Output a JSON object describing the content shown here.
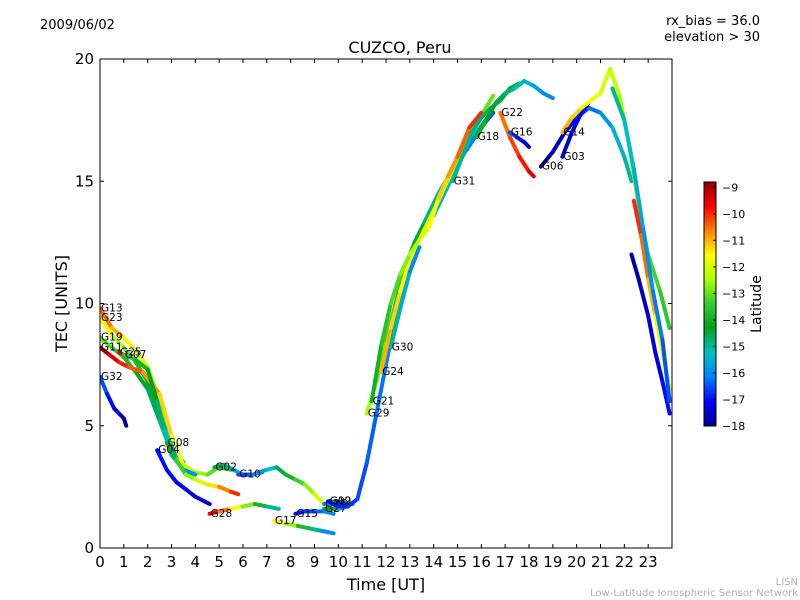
{
  "header": {
    "date": "2009/06/02",
    "bias": "rx_bias = 36.0",
    "elevation": "elevation > 30"
  },
  "footer": {
    "line1": "LISN",
    "line2": "Low-Latitude Ionospheric Sensor Network"
  },
  "colorbar": {
    "label": "Latitude",
    "min": -18,
    "max": -8.8,
    "ticks": [
      -9,
      -10,
      -11,
      -12,
      -13,
      -14,
      -15,
      -16,
      -17,
      -18
    ],
    "colors": [
      "#00008f",
      "#0000ff",
      "#0080ff",
      "#00c0c0",
      "#00a020",
      "#33cc33",
      "#aaff00",
      "#ffff00",
      "#ff8000",
      "#ff0000",
      "#8f0000"
    ]
  },
  "chart_data": {
    "type": "scatter",
    "title": "CUZCO, Peru",
    "xlabel": "Time [UT]",
    "ylabel": "TEC [UNITS]",
    "xlim": [
      0,
      24
    ],
    "ylim": [
      0,
      20
    ],
    "xticks": [
      0,
      1,
      2,
      3,
      4,
      5,
      6,
      7,
      8,
      9,
      10,
      11,
      12,
      13,
      14,
      15,
      16,
      17,
      18,
      19,
      20,
      21,
      22,
      23
    ],
    "yticks": [
      0,
      5,
      10,
      15,
      20
    ],
    "series": [
      {
        "name": "G13",
        "lat_start": -10.5,
        "lat_end": -13.0,
        "points": [
          [
            0.0,
            9.8
          ],
          [
            0.5,
            9.0
          ],
          [
            1.0,
            8.6
          ],
          [
            1.5,
            8.1
          ],
          [
            2.0,
            7.4
          ],
          [
            2.5,
            6.0
          ],
          [
            3.0,
            4.5
          ]
        ]
      },
      {
        "name": "G23",
        "lat_start": -11.5,
        "lat_end": -16.0,
        "points": [
          [
            0.0,
            9.4
          ],
          [
            0.5,
            8.7
          ],
          [
            1.0,
            8.2
          ],
          [
            1.5,
            7.6
          ],
          [
            2.0,
            6.8
          ],
          [
            2.5,
            5.5
          ],
          [
            3.0,
            4.2
          ],
          [
            3.5,
            3.5
          ]
        ]
      },
      {
        "name": "G19",
        "lat_start": -13.0,
        "lat_end": -15.0,
        "points": [
          [
            0.0,
            8.6
          ],
          [
            0.5,
            8.2
          ],
          [
            1.0,
            7.8
          ],
          [
            1.5,
            7.2
          ],
          [
            2.0,
            6.5
          ],
          [
            2.5,
            5.2
          ],
          [
            3.0,
            3.9
          ]
        ]
      },
      {
        "name": "G11",
        "lat_start": -9.0,
        "lat_end": -13.5,
        "points": [
          [
            0.0,
            8.2
          ],
          [
            0.4,
            7.9
          ],
          [
            0.8,
            7.6
          ],
          [
            1.2,
            7.4
          ],
          [
            1.8,
            7.2
          ],
          [
            2.5,
            6.3
          ],
          [
            3.0,
            4.6
          ],
          [
            3.5,
            3.4
          ],
          [
            4.0,
            3.1
          ],
          [
            4.5,
            3.0
          ],
          [
            5.0,
            3.3
          ],
          [
            5.5,
            3.2
          ]
        ]
      },
      {
        "name": "G25",
        "lat_start": -9.5,
        "lat_end": -9.8,
        "points": [
          [
            0.8,
            8.0
          ],
          [
            1.0,
            7.9
          ],
          [
            1.2,
            7.8
          ]
        ]
      },
      {
        "name": "G07",
        "lat_start": -13.5,
        "lat_end": -16.0,
        "points": [
          [
            1.0,
            7.9
          ],
          [
            1.5,
            7.7
          ],
          [
            2.0,
            7.3
          ],
          [
            2.4,
            6.0
          ],
          [
            2.7,
            4.8
          ],
          [
            3.0,
            3.8
          ],
          [
            3.5,
            3.2
          ],
          [
            4.0,
            3.0
          ]
        ]
      },
      {
        "name": "G32",
        "lat_start": -16.5,
        "lat_end": -18.0,
        "points": [
          [
            0.0,
            7.0
          ],
          [
            0.3,
            6.3
          ],
          [
            0.6,
            5.7
          ],
          [
            1.0,
            5.3
          ],
          [
            1.1,
            5.0
          ]
        ]
      },
      {
        "name": "G08",
        "lat_start": -14.0,
        "lat_end": -10.0,
        "points": [
          [
            2.8,
            4.3
          ],
          [
            3.2,
            3.6
          ],
          [
            3.6,
            3.0
          ],
          [
            4.0,
            2.8
          ],
          [
            4.5,
            2.6
          ],
          [
            5.0,
            2.5
          ],
          [
            5.5,
            2.3
          ],
          [
            5.8,
            2.2
          ]
        ]
      },
      {
        "name": "G04",
        "lat_start": -17.0,
        "lat_end": -17.5,
        "points": [
          [
            2.4,
            4.0
          ],
          [
            2.8,
            3.2
          ],
          [
            3.2,
            2.7
          ],
          [
            3.6,
            2.4
          ],
          [
            4.0,
            2.1
          ],
          [
            4.4,
            1.9
          ],
          [
            4.6,
            1.8
          ]
        ]
      },
      {
        "name": "G02",
        "lat_start": -14.5,
        "lat_end": -16.5,
        "points": [
          [
            4.8,
            3.3
          ],
          [
            5.2,
            3.4
          ],
          [
            5.6,
            3.2
          ],
          [
            6.0,
            3.0
          ],
          [
            6.4,
            3.0
          ],
          [
            6.8,
            3.1
          ]
        ]
      },
      {
        "name": "G10",
        "lat_start": -16.5,
        "lat_end": -12.0,
        "points": [
          [
            5.8,
            3.0
          ],
          [
            6.4,
            3.0
          ],
          [
            7.0,
            3.2
          ],
          [
            7.4,
            3.3
          ],
          [
            7.8,
            3.0
          ],
          [
            8.2,
            2.8
          ],
          [
            8.6,
            2.6
          ],
          [
            9.0,
            2.2
          ],
          [
            9.3,
            1.9
          ]
        ]
      },
      {
        "name": "G28",
        "lat_start": -9.5,
        "lat_end": -15.0,
        "points": [
          [
            4.6,
            1.4
          ],
          [
            5.0,
            1.5
          ],
          [
            5.5,
            1.6
          ],
          [
            6.0,
            1.7
          ],
          [
            6.5,
            1.8
          ],
          [
            7.0,
            1.7
          ],
          [
            7.5,
            1.6
          ]
        ]
      },
      {
        "name": "G17",
        "lat_start": -11.5,
        "lat_end": -16.0,
        "points": [
          [
            7.3,
            1.1
          ],
          [
            7.8,
            1.0
          ],
          [
            8.3,
            0.9
          ],
          [
            8.8,
            0.8
          ],
          [
            9.3,
            0.7
          ],
          [
            9.8,
            0.6
          ]
        ]
      },
      {
        "name": "G15",
        "lat_start": -17.0,
        "lat_end": -16.0,
        "points": [
          [
            8.2,
            1.4
          ],
          [
            8.6,
            1.5
          ],
          [
            9.0,
            1.5
          ],
          [
            9.4,
            1.5
          ],
          [
            9.8,
            1.4
          ]
        ]
      },
      {
        "name": "G12",
        "lat_start": -14.0,
        "lat_end": -14.5,
        "points": [
          [
            9.6,
            1.9
          ],
          [
            10.0,
            1.9
          ],
          [
            10.4,
            1.8
          ],
          [
            10.6,
            1.8
          ]
        ]
      },
      {
        "name": "G27",
        "lat_start": -14.5,
        "lat_end": -15.5,
        "points": [
          [
            9.4,
            1.6
          ],
          [
            10.0,
            1.6
          ],
          [
            10.4,
            1.7
          ]
        ]
      },
      {
        "name": "G26",
        "lat_start": -16.0,
        "lat_end": -16.5,
        "points": [
          [
            9.4,
            1.8
          ],
          [
            9.8,
            1.8
          ],
          [
            10.2,
            1.9
          ]
        ]
      },
      {
        "name": "G09",
        "lat_start": -17.0,
        "lat_end": -15.0,
        "points": [
          [
            9.6,
            1.9
          ],
          [
            10.0,
            1.7
          ],
          [
            10.4,
            1.7
          ],
          [
            10.8,
            2.0
          ],
          [
            11.2,
            3.5
          ],
          [
            11.6,
            5.5
          ],
          [
            12.0,
            7.5
          ],
          [
            12.4,
            9.5
          ],
          [
            12.8,
            11.2
          ],
          [
            13.4,
            12.8
          ],
          [
            14.0,
            13.6
          ],
          [
            14.6,
            14.8
          ],
          [
            15.2,
            16.0
          ],
          [
            15.8,
            17.0
          ],
          [
            16.4,
            17.8
          ]
        ]
      },
      {
        "name": "G29",
        "lat_start": -12.5,
        "lat_end": -16.5,
        "points": [
          [
            11.2,
            5.5
          ],
          [
            11.6,
            6.8
          ],
          [
            12.0,
            8.5
          ],
          [
            12.4,
            10.0
          ],
          [
            12.8,
            11.5
          ],
          [
            13.2,
            12.5
          ],
          [
            13.6,
            13.3
          ],
          [
            14.2,
            14.5
          ],
          [
            14.8,
            15.5
          ],
          [
            15.4,
            16.3
          ],
          [
            16.0,
            17.2
          ],
          [
            16.5,
            17.8
          ]
        ]
      },
      {
        "name": "G24",
        "lat_start": -11.0,
        "lat_end": -13.0,
        "points": [
          [
            11.8,
            7.2
          ],
          [
            12.2,
            9.0
          ],
          [
            12.6,
            10.5
          ],
          [
            13.0,
            11.8
          ],
          [
            13.6,
            13.0
          ],
          [
            14.2,
            14.2
          ],
          [
            14.8,
            15.5
          ],
          [
            15.4,
            16.8
          ],
          [
            16.0,
            17.7
          ],
          [
            16.5,
            18.5
          ]
        ]
      },
      {
        "name": "G30",
        "lat_start": -15.0,
        "lat_end": -16.0,
        "points": [
          [
            12.2,
            8.2
          ],
          [
            12.6,
            9.8
          ],
          [
            13.0,
            11.3
          ],
          [
            13.4,
            12.3
          ]
        ]
      },
      {
        "name": "G21",
        "lat_start": -14.0,
        "lat_end": -10.0,
        "points": [
          [
            11.4,
            6.0
          ],
          [
            11.8,
            8.3
          ],
          [
            12.2,
            10.0
          ],
          [
            12.6,
            11.2
          ],
          [
            13.0,
            12.0
          ],
          [
            13.4,
            12.6
          ],
          [
            13.8,
            13.1
          ],
          [
            14.2,
            14.3
          ],
          [
            14.6,
            15.2
          ],
          [
            15.0,
            16.0
          ],
          [
            15.5,
            17.2
          ],
          [
            16.0,
            17.8
          ]
        ]
      },
      {
        "name": "G31",
        "lat_start": -15.0,
        "lat_end": -14.5,
        "points": [
          [
            14.8,
            15.0
          ],
          [
            15.2,
            16.0
          ],
          [
            15.6,
            17.0
          ],
          [
            16.0,
            17.6
          ],
          [
            16.4,
            18.0
          ],
          [
            16.8,
            18.3
          ],
          [
            17.2,
            18.8
          ],
          [
            17.6,
            19.0
          ]
        ]
      },
      {
        "name": "G18",
        "lat_start": -14.0,
        "lat_end": -16.0,
        "points": [
          [
            15.8,
            16.8
          ],
          [
            16.2,
            17.5
          ],
          [
            16.6,
            18.2
          ],
          [
            17.0,
            18.6
          ],
          [
            17.4,
            18.8
          ],
          [
            17.8,
            19.1
          ],
          [
            18.2,
            18.9
          ],
          [
            18.6,
            18.6
          ],
          [
            19.0,
            18.4
          ]
        ]
      },
      {
        "name": "G22",
        "lat_start": -10.5,
        "lat_end": -9.5,
        "points": [
          [
            16.8,
            17.8
          ],
          [
            17.2,
            16.8
          ],
          [
            17.6,
            16.0
          ],
          [
            18.0,
            15.4
          ],
          [
            18.2,
            15.2
          ]
        ]
      },
      {
        "name": "G16",
        "lat_start": -16.5,
        "lat_end": -17.5,
        "points": [
          [
            17.2,
            17.0
          ],
          [
            17.5,
            16.8
          ],
          [
            17.8,
            16.6
          ],
          [
            18.0,
            16.4
          ]
        ]
      },
      {
        "name": "G06",
        "lat_start": -18.0,
        "lat_end": -15.0,
        "points": [
          [
            18.5,
            15.6
          ],
          [
            19.0,
            16.2
          ],
          [
            19.5,
            17.0
          ],
          [
            20.0,
            17.6
          ],
          [
            20.5,
            18.0
          ],
          [
            21.0,
            17.8
          ],
          [
            21.5,
            17.2
          ],
          [
            22.0,
            16.0
          ],
          [
            22.3,
            15.0
          ]
        ]
      },
      {
        "name": "G03",
        "lat_start": -17.5,
        "lat_end": -17.0,
        "points": [
          [
            19.4,
            16.0
          ],
          [
            19.8,
            17.0
          ],
          [
            20.2,
            17.8
          ],
          [
            20.5,
            18.2
          ]
        ]
      },
      {
        "name": "G14",
        "lat_start": -11.0,
        "lat_end": -13.5,
        "points": [
          [
            19.4,
            17.0
          ],
          [
            19.8,
            17.6
          ],
          [
            20.2,
            18.0
          ],
          [
            20.6,
            18.3
          ],
          [
            21.0,
            18.6
          ],
          [
            21.4,
            19.6
          ],
          [
            21.8,
            18.5
          ],
          [
            22.2,
            16.5
          ],
          [
            22.6,
            14.0
          ],
          [
            23.0,
            12.0
          ],
          [
            23.5,
            10.5
          ],
          [
            23.9,
            9.0
          ]
        ]
      },
      {
        "name": "",
        "lat_start": -17.8,
        "lat_end": -17.0,
        "points": [
          [
            22.3,
            12.0
          ],
          [
            22.6,
            11.0
          ],
          [
            23.0,
            9.5
          ],
          [
            23.3,
            8.0
          ],
          [
            23.6,
            6.8
          ],
          [
            23.9,
            5.5
          ]
        ]
      },
      {
        "name": "",
        "lat_start": -10.0,
        "lat_end": -12.0,
        "points": [
          [
            22.4,
            14.2
          ],
          [
            22.7,
            12.8
          ],
          [
            23.0,
            11.0
          ],
          [
            23.3,
            9.5
          ],
          [
            23.6,
            8.0
          ],
          [
            23.9,
            6.5
          ]
        ]
      },
      {
        "name": "",
        "lat_start": -15.0,
        "lat_end": -16.5,
        "points": [
          [
            21.5,
            18.8
          ],
          [
            22.0,
            17.5
          ],
          [
            22.4,
            15.5
          ],
          [
            22.8,
            13.0
          ],
          [
            23.2,
            10.5
          ],
          [
            23.6,
            8.5
          ],
          [
            23.9,
            6.0
          ]
        ]
      }
    ]
  }
}
